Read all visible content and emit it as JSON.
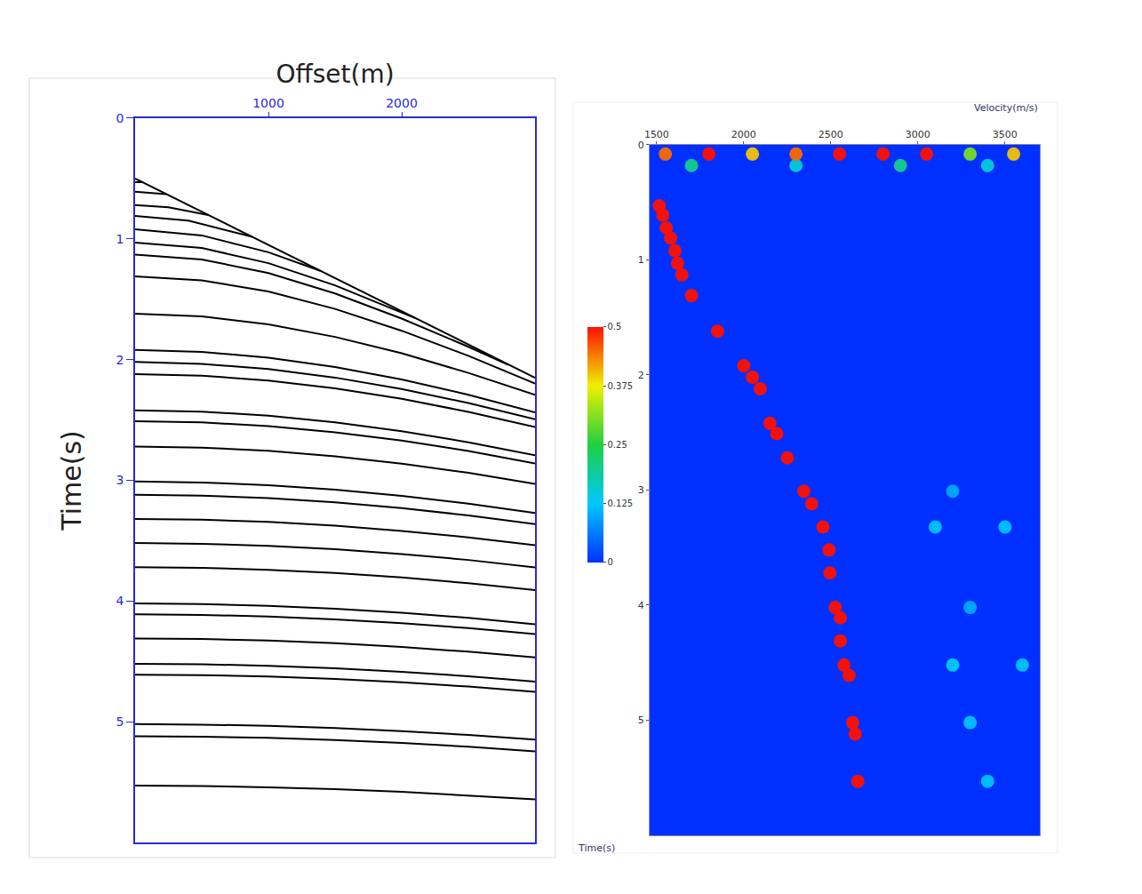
{
  "chart_data": [
    {
      "type": "line",
      "x_label": "Offset(m)",
      "y_label": "Time(s)",
      "xlim": [
        0,
        3000
      ],
      "xticks": [
        1000,
        2000
      ],
      "ylim": [
        6,
        0
      ],
      "yticks": [
        0,
        1,
        2,
        3,
        4,
        5
      ],
      "grid": false,
      "series": [
        {
          "color": "#000000",
          "x": [
            0,
            3000
          ],
          "values": [
            0.5,
            2.15
          ]
        },
        {
          "color": "#000000",
          "x": [
            0,
            55
          ],
          "values": [
            0.53,
            0.531
          ]
        },
        {
          "color": "#000000",
          "x": [
            0,
            235
          ],
          "values": [
            0.61,
            0.629
          ]
        },
        {
          "color": "#000000",
          "x": [
            0,
            250,
            550
          ],
          "values": [
            0.72,
            0.738,
            0.802
          ]
        },
        {
          "color": "#000000",
          "x": [
            0,
            400,
            880
          ],
          "values": [
            0.81,
            0.849,
            0.983
          ]
        },
        {
          "color": "#000000",
          "x": [
            0,
            500,
            1000,
            1390
          ],
          "values": [
            0.92,
            0.971,
            1.111,
            1.264
          ]
        },
        {
          "color": "#000000",
          "x": [
            0,
            500,
            1000,
            1500,
            2100
          ],
          "values": [
            1.03,
            1.075,
            1.201,
            1.385,
            1.656
          ]
        },
        {
          "color": "#000000",
          "x": [
            0,
            500,
            1000,
            1500,
            2000,
            2500,
            2800
          ],
          "values": [
            1.13,
            1.17,
            1.283,
            1.452,
            1.66,
            1.894,
            2.043
          ]
        },
        {
          "color": "#000000",
          "x": [
            0,
            500,
            1000,
            1500,
            2000,
            2500,
            3000
          ],
          "values": [
            1.31,
            1.343,
            1.436,
            1.58,
            1.761,
            1.969,
            2.198
          ]
        },
        {
          "color": "#000000",
          "x": [
            0,
            500,
            1000,
            1500,
            2000,
            2500,
            3000
          ],
          "values": [
            1.62,
            1.642,
            1.708,
            1.812,
            1.948,
            2.11,
            2.292
          ]
        },
        {
          "color": "#000000",
          "x": [
            0,
            500,
            1000,
            1500,
            2000,
            2500,
            3000
          ],
          "values": [
            1.92,
            1.936,
            1.984,
            2.061,
            2.165,
            2.291,
            2.437
          ]
        },
        {
          "color": "#000000",
          "x": [
            0,
            500,
            1000,
            1500,
            2000,
            2500,
            3000
          ],
          "values": [
            2.02,
            2.035,
            2.078,
            2.149,
            2.243,
            2.36,
            2.494
          ]
        },
        {
          "color": "#000000",
          "x": [
            0,
            500,
            1000,
            1500,
            2000,
            2500,
            3000
          ],
          "values": [
            2.12,
            2.133,
            2.173,
            2.238,
            2.325,
            2.433,
            2.558
          ]
        },
        {
          "color": "#000000",
          "x": [
            0,
            500,
            1000,
            1500,
            2000,
            2500,
            3000
          ],
          "values": [
            2.42,
            2.431,
            2.464,
            2.519,
            2.593,
            2.685,
            2.793
          ]
        },
        {
          "color": "#000000",
          "x": [
            0,
            500,
            1000,
            1500,
            2000,
            2500,
            3000
          ],
          "values": [
            2.51,
            2.52,
            2.551,
            2.602,
            2.671,
            2.757,
            2.86
          ]
        },
        {
          "color": "#000000",
          "x": [
            0,
            500,
            1000,
            1500,
            2000,
            2500,
            3000
          ],
          "values": [
            2.72,
            2.729,
            2.756,
            2.801,
            2.862,
            2.938,
            3.029
          ]
        },
        {
          "color": "#000000",
          "x": [
            0,
            500,
            1000,
            1500,
            2000,
            2500,
            3000
          ],
          "values": [
            3.01,
            3.018,
            3.04,
            3.077,
            3.129,
            3.193,
            3.271
          ]
        },
        {
          "color": "#000000",
          "x": [
            0,
            500,
            1000,
            1500,
            2000,
            2500,
            3000
          ],
          "values": [
            3.12,
            3.127,
            3.148,
            3.183,
            3.23,
            3.291,
            3.363
          ]
        },
        {
          "color": "#000000",
          "x": [
            0,
            500,
            1000,
            1500,
            2000,
            2500,
            3000
          ],
          "values": [
            3.32,
            3.326,
            3.345,
            3.376,
            3.419,
            3.473,
            3.538
          ]
        },
        {
          "color": "#000000",
          "x": [
            0,
            500,
            1000,
            1500,
            2000,
            2500,
            3000
          ],
          "values": [
            3.52,
            3.526,
            3.543,
            3.571,
            3.611,
            3.66,
            3.721
          ]
        },
        {
          "color": "#000000",
          "x": [
            0,
            500,
            1000,
            1500,
            2000,
            2500,
            3000
          ],
          "values": [
            3.72,
            3.725,
            3.742,
            3.768,
            3.805,
            3.853,
            3.91
          ]
        },
        {
          "color": "#000000",
          "x": [
            0,
            500,
            1000,
            1500,
            2000,
            2500,
            3000
          ],
          "values": [
            4.02,
            4.025,
            4.04,
            4.064,
            4.097,
            4.14,
            4.192
          ]
        },
        {
          "color": "#000000",
          "x": [
            0,
            500,
            1000,
            1500,
            2000,
            2500,
            3000
          ],
          "values": [
            4.11,
            4.115,
            4.129,
            4.152,
            4.184,
            4.225,
            4.274
          ]
        },
        {
          "color": "#000000",
          "x": [
            0,
            500,
            1000,
            1500,
            2000,
            2500,
            3000
          ],
          "values": [
            4.31,
            4.314,
            4.328,
            4.35,
            4.381,
            4.42,
            4.467
          ]
        },
        {
          "color": "#000000",
          "x": [
            0,
            500,
            1000,
            1500,
            2000,
            2500,
            3000
          ],
          "values": [
            4.52,
            4.524,
            4.537,
            4.557,
            4.586,
            4.623,
            4.668
          ]
        },
        {
          "color": "#000000",
          "x": [
            0,
            500,
            1000,
            1500,
            2000,
            2500,
            3000
          ],
          "values": [
            4.61,
            4.614,
            4.626,
            4.646,
            4.674,
            4.709,
            4.752
          ]
        },
        {
          "color": "#000000",
          "x": [
            0,
            500,
            1000,
            1500,
            2000,
            2500,
            3000
          ],
          "values": [
            5.02,
            5.024,
            5.034,
            5.052,
            5.078,
            5.11,
            5.149
          ]
        },
        {
          "color": "#000000",
          "x": [
            0,
            500,
            1000,
            1500,
            2000,
            2500,
            3000
          ],
          "values": [
            5.12,
            5.124,
            5.134,
            5.151,
            5.176,
            5.207,
            5.245
          ]
        },
        {
          "color": "#000000",
          "x": [
            0,
            500,
            1000,
            1500,
            2000,
            2500,
            3000
          ],
          "values": [
            5.53,
            5.533,
            5.543,
            5.559,
            5.581,
            5.61,
            5.644
          ]
        }
      ]
    },
    {
      "type": "scatter",
      "x_label": "Velocity(m/s)",
      "y_label": "Time(s)",
      "xlim": [
        1460,
        3700
      ],
      "xticks": [
        1500,
        2000,
        2500,
        3000,
        3500
      ],
      "ylim": [
        6,
        0
      ],
      "yticks": [
        0,
        1,
        2,
        3,
        4,
        5
      ],
      "grid": false,
      "series": [
        {
          "x": [
            3100,
            3500,
            3200,
            3600,
            3300,
            3400,
            3200,
            3300,
            1700,
            2300,
            2900,
            3400,
            1550,
            1800,
            2050,
            2300,
            2550,
            2800,
            3050,
            3300,
            3550,
            1515,
            1535,
            1555,
            1580,
            1605,
            1620,
            1645,
            1700,
            1850,
            2000,
            2050,
            2095,
            2150,
            2190,
            2250,
            2345,
            2390,
            2455,
            2490,
            2495,
            2525,
            2555,
            2555,
            2575,
            2605,
            2625,
            2640,
            2655
          ],
          "values": [
            3.32,
            3.32,
            4.52,
            4.52,
            5.02,
            5.53,
            3.01,
            4.02,
            0.18,
            0.18,
            0.18,
            0.18,
            0.08,
            0.08,
            0.08,
            0.08,
            0.08,
            0.08,
            0.08,
            0.08,
            0.08,
            0.53,
            0.61,
            0.72,
            0.81,
            0.92,
            1.03,
            1.13,
            1.31,
            1.62,
            1.92,
            2.02,
            2.12,
            2.42,
            2.51,
            2.72,
            3.01,
            3.12,
            3.32,
            3.52,
            3.72,
            4.02,
            4.11,
            4.31,
            4.52,
            4.61,
            5.02,
            5.12,
            5.53
          ],
          "semblance": [
            0.12,
            0.12,
            0.13,
            0.12,
            0.12,
            0.12,
            0.1,
            0.1,
            0.2,
            0.15,
            0.2,
            0.15,
            0.45,
            0.5,
            0.4,
            0.45,
            0.5,
            0.5,
            0.5,
            0.3,
            0.4,
            0.5,
            0.5,
            0.5,
            0.5,
            0.5,
            0.5,
            0.5,
            0.5,
            0.5,
            0.5,
            0.5,
            0.5,
            0.5,
            0.5,
            0.5,
            0.5,
            0.5,
            0.5,
            0.5,
            0.5,
            0.5,
            0.5,
            0.5,
            0.5,
            0.5,
            0.5,
            0.5,
            0.5
          ]
        }
      ],
      "colorbar": {
        "range": [
          0,
          0.5
        ],
        "ticks": [
          0,
          0.125,
          0.25,
          0.375,
          0.5
        ]
      }
    }
  ]
}
